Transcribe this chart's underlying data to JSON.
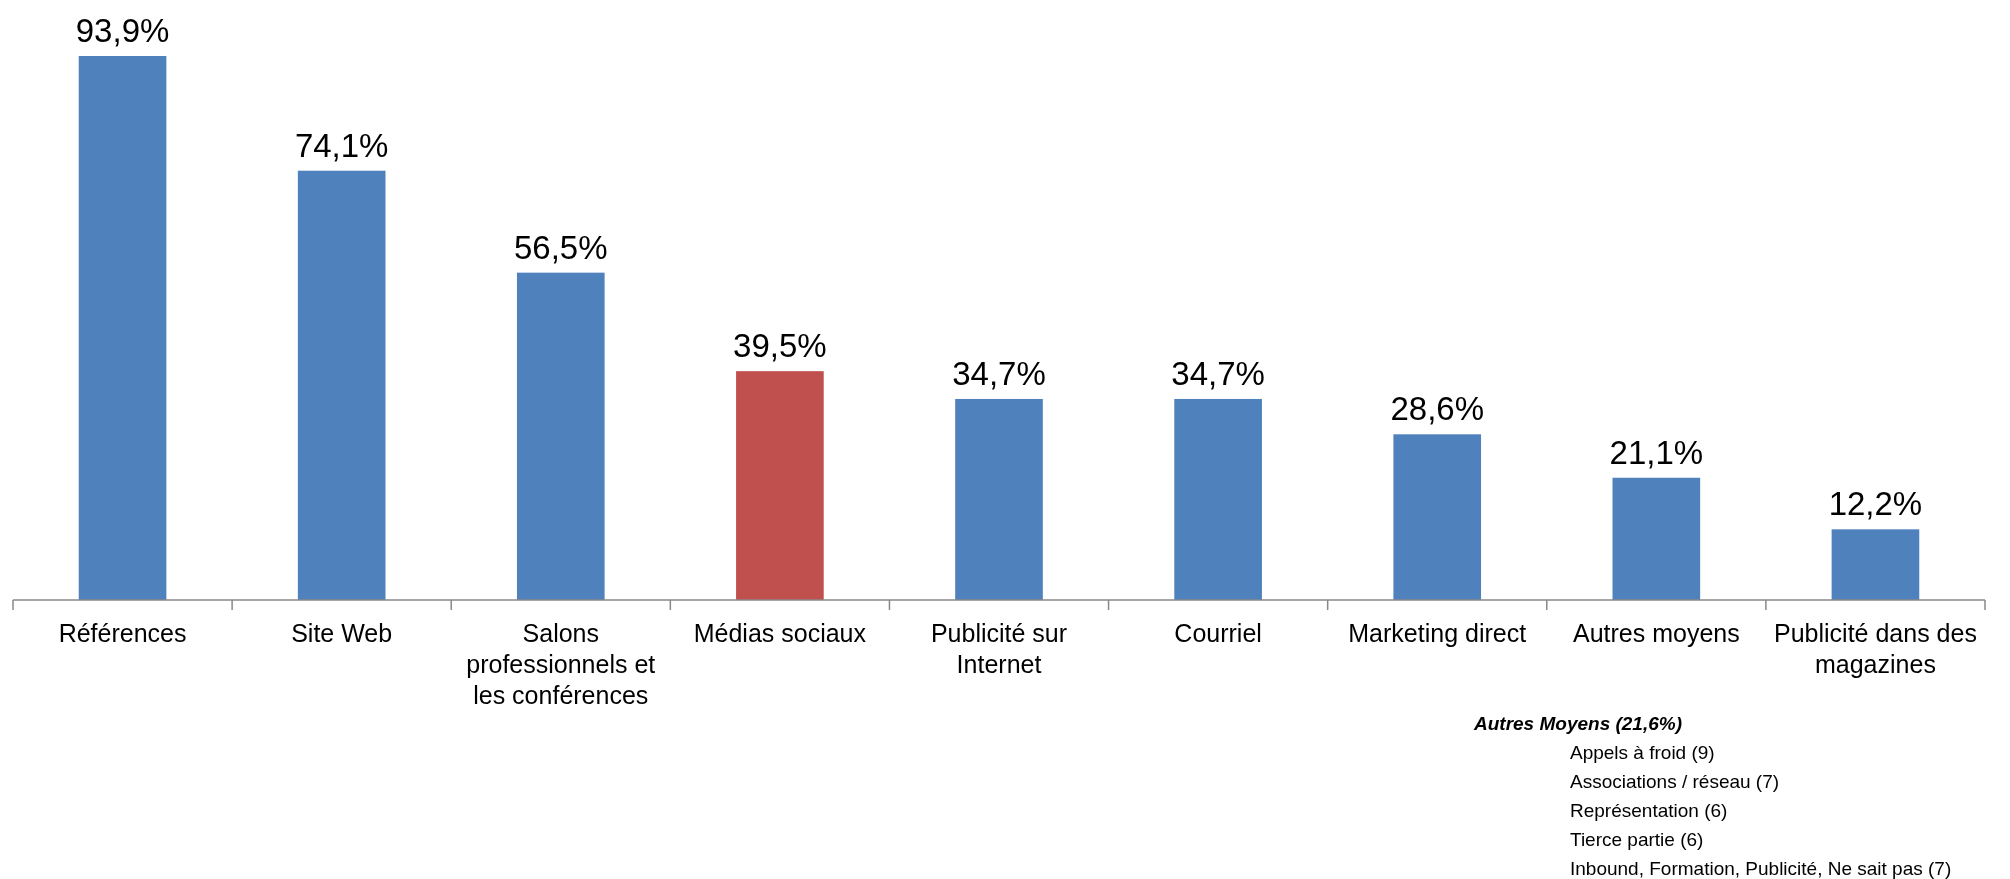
{
  "chart_data": {
    "type": "bar",
    "categories": [
      "Références",
      "Site Web",
      "Salons professionnels et les conférences",
      "Médias sociaux",
      "Publicité sur Internet",
      "Courriel",
      "Marketing direct",
      "Autres moyens",
      "Publicité dans des magazines"
    ],
    "values": [
      93.9,
      74.1,
      56.5,
      39.5,
      34.7,
      34.7,
      28.6,
      21.1,
      12.2
    ],
    "colors": [
      "#4f81bd",
      "#4f81bd",
      "#4f81bd",
      "#c0504d",
      "#4f81bd",
      "#4f81bd",
      "#4f81bd",
      "#4f81bd",
      "#4f81bd"
    ],
    "value_labels": [
      "93,9%",
      "74,1%",
      "56,5%",
      "39,5%",
      "34,7%",
      "34,7%",
      "28,6%",
      "21,1%",
      "12,2%"
    ],
    "annotations": [
      "Autres Moyens (21,6%)",
      "Appels à froid (9)",
      "Associations / réseau (7)",
      "Représentation (6)",
      "Tierce partie (6)",
      "Inbound, Formation, Publicité, Ne sait pas (7)"
    ]
  }
}
